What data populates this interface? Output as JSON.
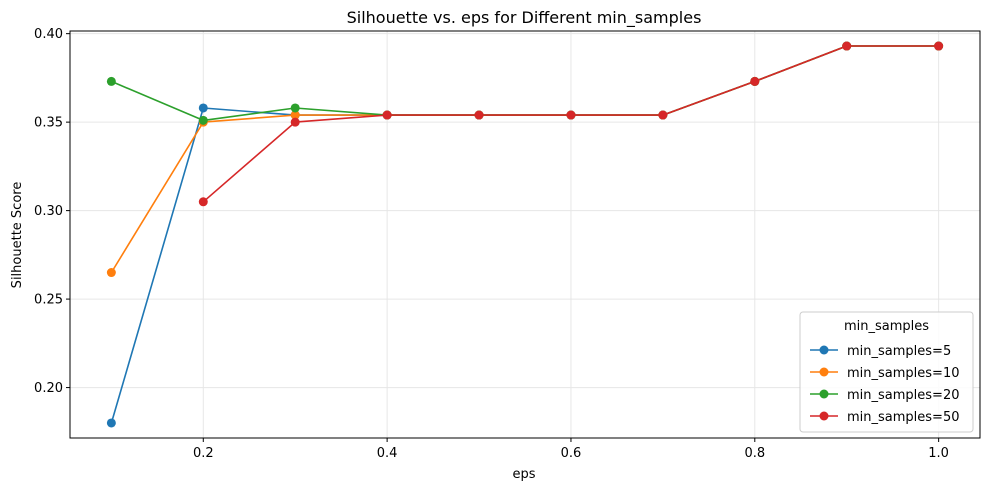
{
  "chart_data": {
    "type": "line",
    "title": "Silhouette vs. eps for Different min_samples",
    "xlabel": "eps",
    "ylabel": "Silhouette Score",
    "xlim": [
      0.055,
      1.045
    ],
    "ylim": [
      0.1715,
      0.4015
    ],
    "xticks": [
      0.2,
      0.4,
      0.6,
      0.8,
      1.0
    ],
    "xtick_labels": [
      "0.2",
      "0.4",
      "0.6",
      "0.8",
      "1.0"
    ],
    "yticks": [
      0.2,
      0.25,
      0.3,
      0.35,
      0.4
    ],
    "ytick_labels": [
      "0.20",
      "0.25",
      "0.30",
      "0.35",
      "0.40"
    ],
    "grid": true,
    "legend": {
      "title": "min_samples",
      "position": "lower right"
    },
    "series": [
      {
        "name": "min_samples=5",
        "color": "#1f77b4",
        "x": [
          0.1,
          0.2,
          0.3,
          0.4,
          0.5,
          0.6,
          0.7,
          0.8,
          0.9,
          1.0
        ],
        "y": [
          0.18,
          0.358,
          0.354,
          0.354,
          0.354,
          0.354,
          0.354,
          0.373,
          0.393,
          0.393
        ]
      },
      {
        "name": "min_samples=10",
        "color": "#ff7f0e",
        "x": [
          0.1,
          0.2,
          0.3,
          0.4,
          0.5,
          0.6,
          0.7,
          0.8,
          0.9,
          1.0
        ],
        "y": [
          0.265,
          0.35,
          0.354,
          0.354,
          0.354,
          0.354,
          0.354,
          0.373,
          0.393,
          0.393
        ]
      },
      {
        "name": "min_samples=20",
        "color": "#2ca02c",
        "x": [
          0.1,
          0.2,
          0.3,
          0.4,
          0.5,
          0.6,
          0.7,
          0.8,
          0.9,
          1.0
        ],
        "y": [
          0.373,
          0.351,
          0.358,
          0.354,
          0.354,
          0.354,
          0.354,
          0.373,
          0.393,
          0.393
        ]
      },
      {
        "name": "min_samples=50",
        "color": "#d62728",
        "x": [
          0.2,
          0.3,
          0.4,
          0.5,
          0.6,
          0.7,
          0.8,
          0.9,
          1.0
        ],
        "y": [
          0.305,
          0.35,
          0.354,
          0.354,
          0.354,
          0.354,
          0.373,
          0.393,
          0.393
        ]
      }
    ]
  }
}
